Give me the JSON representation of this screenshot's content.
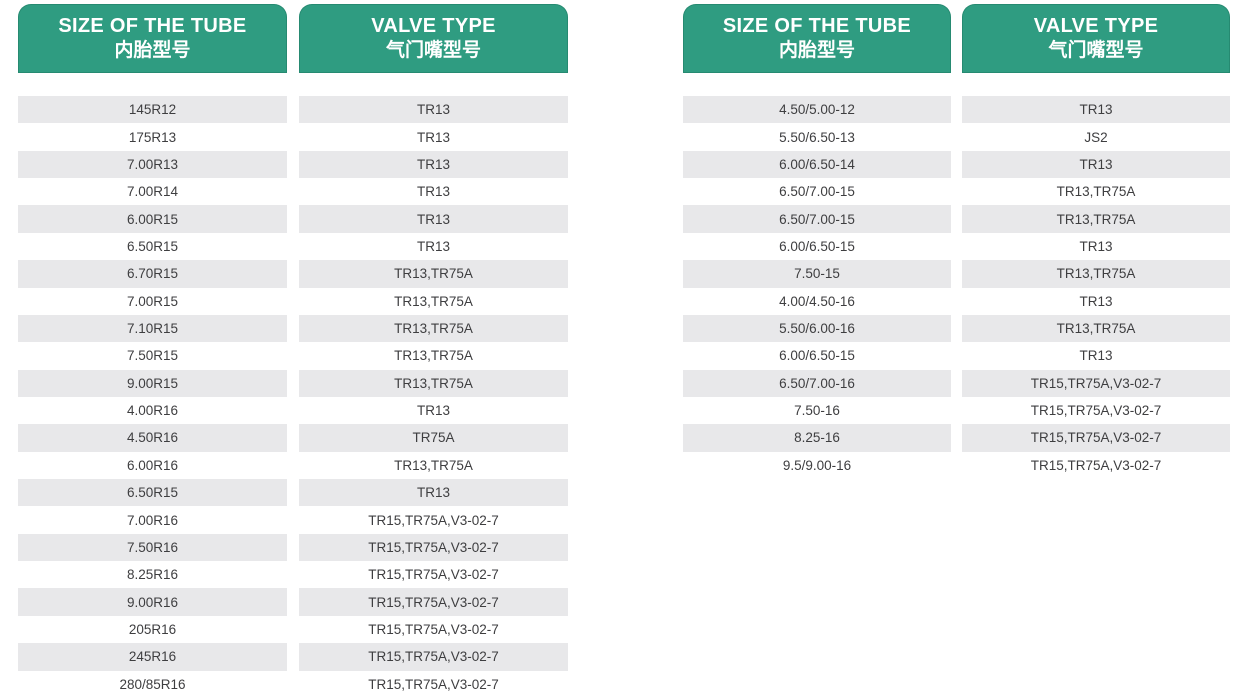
{
  "page": {
    "title": "Tube size and valve type specification tables"
  },
  "colors": {
    "header_bg": "#2F9C81",
    "header_text": "#FFFFFF",
    "row_alt_bg": "#E8E8EA",
    "row_text": "#3E3E40",
    "page_bg": "#FFFFFF"
  },
  "tables": [
    {
      "name": "left-table",
      "columns": [
        {
          "key": "size",
          "header_en": "SIZE OF THE TUBE",
          "header_zh": "内胎型号"
        },
        {
          "key": "valve",
          "header_en": "VALVE TYPE",
          "header_zh": "气门嘴型号"
        }
      ],
      "rows": [
        {
          "size": "145R12",
          "valve": "TR13"
        },
        {
          "size": "175R13",
          "valve": "TR13"
        },
        {
          "size": "7.00R13",
          "valve": "TR13"
        },
        {
          "size": "7.00R14",
          "valve": "TR13"
        },
        {
          "size": "6.00R15",
          "valve": "TR13"
        },
        {
          "size": "6.50R15",
          "valve": "TR13"
        },
        {
          "size": "6.70R15",
          "valve": "TR13,TR75A"
        },
        {
          "size": "7.00R15",
          "valve": "TR13,TR75A"
        },
        {
          "size": "7.10R15",
          "valve": "TR13,TR75A"
        },
        {
          "size": "7.50R15",
          "valve": "TR13,TR75A"
        },
        {
          "size": "9.00R15",
          "valve": "TR13,TR75A"
        },
        {
          "size": "4.00R16",
          "valve": "TR13"
        },
        {
          "size": "4.50R16",
          "valve": "TR75A"
        },
        {
          "size": "6.00R16",
          "valve": "TR13,TR75A"
        },
        {
          "size": "6.50R15",
          "valve": "TR13"
        },
        {
          "size": "7.00R16",
          "valve": "TR15,TR75A,V3-02-7"
        },
        {
          "size": "7.50R16",
          "valve": "TR15,TR75A,V3-02-7"
        },
        {
          "size": "8.25R16",
          "valve": "TR15,TR75A,V3-02-7"
        },
        {
          "size": "9.00R16",
          "valve": "TR15,TR75A,V3-02-7"
        },
        {
          "size": "205R16",
          "valve": "TR15,TR75A,V3-02-7"
        },
        {
          "size": "245R16",
          "valve": "TR15,TR75A,V3-02-7"
        },
        {
          "size": "280/85R16",
          "valve": "TR15,TR75A,V3-02-7"
        }
      ]
    },
    {
      "name": "right-table",
      "columns": [
        {
          "key": "size",
          "header_en": "SIZE OF THE TUBE",
          "header_zh": "内胎型号"
        },
        {
          "key": "valve",
          "header_en": "VALVE TYPE",
          "header_zh": "气门嘴型号"
        }
      ],
      "rows": [
        {
          "size": "4.50/5.00-12",
          "valve": "TR13"
        },
        {
          "size": "5.50/6.50-13",
          "valve": "JS2"
        },
        {
          "size": "6.00/6.50-14",
          "valve": "TR13"
        },
        {
          "size": "6.50/7.00-15",
          "valve": "TR13,TR75A"
        },
        {
          "size": "6.50/7.00-15",
          "valve": "TR13,TR75A"
        },
        {
          "size": "6.00/6.50-15",
          "valve": "TR13"
        },
        {
          "size": "7.50-15",
          "valve": "TR13,TR75A"
        },
        {
          "size": "4.00/4.50-16",
          "valve": "TR13"
        },
        {
          "size": "5.50/6.00-16",
          "valve": "TR13,TR75A"
        },
        {
          "size": "6.00/6.50-15",
          "valve": "TR13"
        },
        {
          "size": "6.50/7.00-16",
          "valve": "TR15,TR75A,V3-02-7"
        },
        {
          "size": "7.50-16",
          "valve": "TR15,TR75A,V3-02-7"
        },
        {
          "size": "8.25-16",
          "valve": "TR15,TR75A,V3-02-7"
        },
        {
          "size": "9.5/9.00-16",
          "valve": "TR15,TR75A,V3-02-7"
        }
      ]
    }
  ]
}
